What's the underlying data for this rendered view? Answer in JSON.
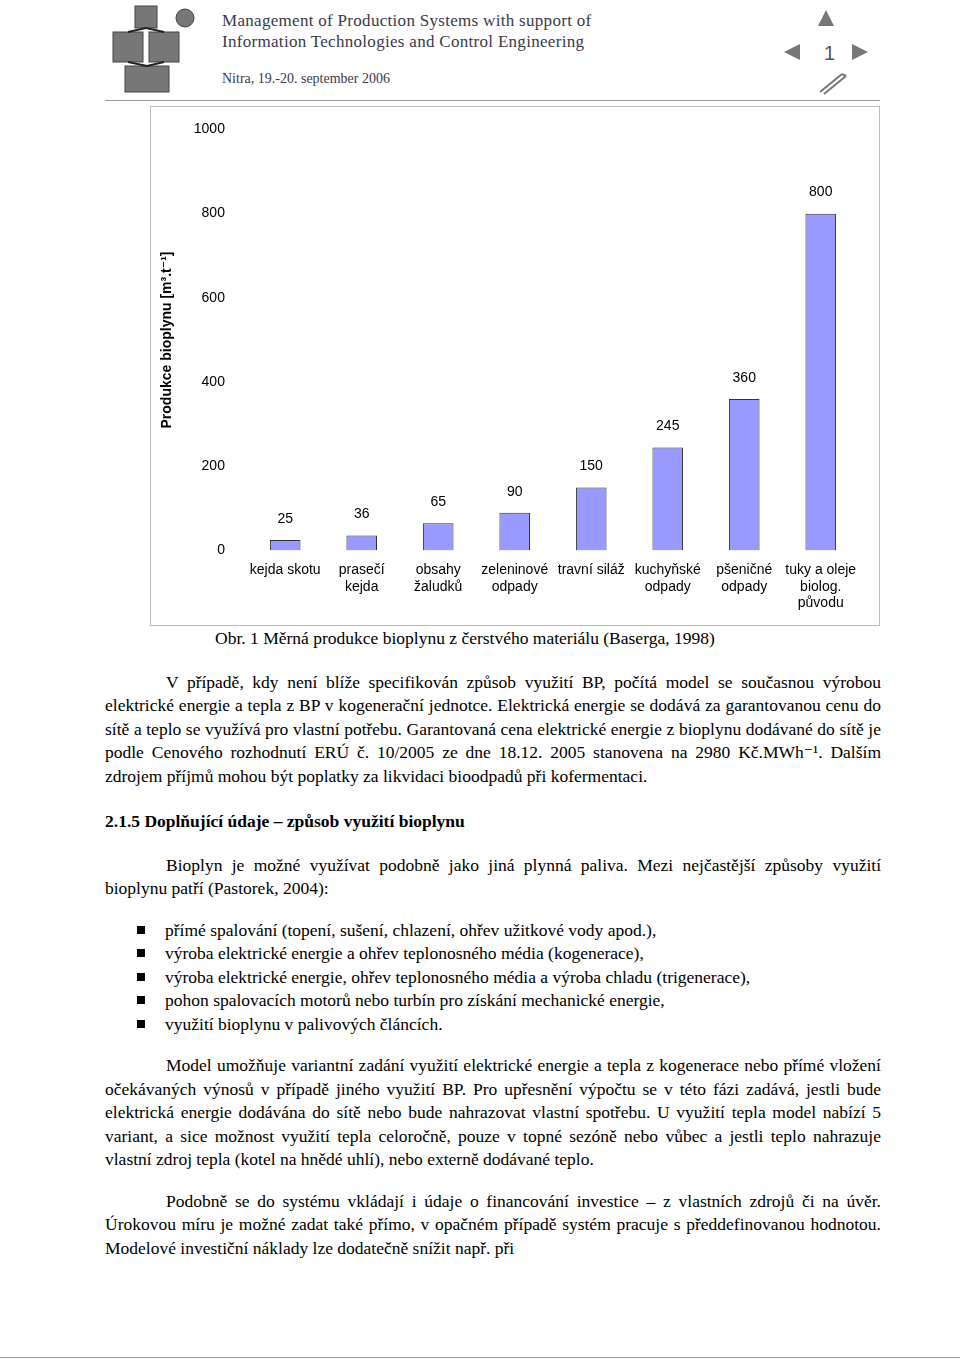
{
  "header": {
    "title_lines": [
      "Management of Production Systems with support of",
      "Information Technologies and Control Engineering"
    ],
    "place_date": "Nitra, 19.-20. september 2006",
    "page": "1"
  },
  "chart_data": {
    "type": "bar",
    "y_label": "Produkce bioplynu [m³.t⁻¹]",
    "categories": [
      "kejda skotu",
      "prasečí\nkejda",
      "obsahy\nžaludků",
      "zeleninové\nodpady",
      "travní siláž",
      "kuchyňské\nodpady",
      "pšeničné\nodpady",
      "tuky a oleje\nbiolog.\npůvodu"
    ],
    "values": [
      25,
      36,
      65,
      90,
      150,
      245,
      360,
      800
    ],
    "color": "#9999ff",
    "ylim": [
      0,
      1000
    ],
    "yticks": [
      0,
      200,
      400,
      600,
      800,
      1000
    ],
    "grid": false,
    "data_labels": true
  },
  "body": [
    {
      "kind": "caption",
      "text": "Obr. 1 Měrná produkce bioplynu z čerstvého materiálu (Baserga, 1998)"
    },
    {
      "kind": "p",
      "text": "V případě, kdy není blíže specifikován způsob využití BP, počítá model se současnou výrobou elektrické energie a tepla z BP v kogenerační jednotce. Elektrická energie se dodává za garantovanou cenu do sítě a teplo se využívá pro vlastní potřebu. Garantovaná cena elektrické energie z bioplynu dodávané do sítě je podle Cenového rozhodnutí ERÚ č. 10/2005 ze dne 18.12. 2005 stanovena na 2980 Kč.MWh⁻¹. Dalším zdrojem příjmů mohou být poplatky za likvidaci bioodpadů při kofermentaci."
    },
    {
      "kind": "h",
      "text": "2.1.5 Doplňující údaje – způsob využití bioplynu"
    },
    {
      "kind": "p",
      "text": "Bioplyn je možné využívat podobně jako jiná plynná paliva. Mezi nejčastější způsoby využití bioplynu patří (Pastorek, 2004):"
    },
    {
      "kind": "ul",
      "items": [
        "přímé spalování (topení, sušení, chlazení, ohřev užitkové vody apod.),",
        "výroba elektrické energie a ohřev teplonosného média (kogenerace),",
        "výroba elektrické energie, ohřev teplonosného média a výroba chladu (trigenerace),",
        "pohon spalovacích motorů nebo turbín pro získání mechanické energie,",
        "využití bioplynu v palivových článcích."
      ]
    },
    {
      "kind": "p",
      "text": "Model umožňuje variantní zadání využití elektrické energie a tepla z kogenerace nebo přímé vložení očekávaných výnosů v případě jiného využití BP. Pro upřesnění výpočtu se v této fázi zadává, jestli bude elektrická energie dodávána do sítě nebo bude nahrazovat vlastní spotřebu. U využití tepla model nabízí 5 variant, a sice možnost využití tepla celoročně, pouze v topné sezóně nebo vůbec a jestli teplo nahrazuje vlastní zdroj tepla (kotel na hnědé uhlí), nebo externě dodávané teplo."
    },
    {
      "kind": "p",
      "text": "Podobně se do systému vkládají i údaje o financování investice – z vlastních zdrojů či na úvěr. Úrokovou míru je možné zadat také přímo, v opačném případě systém pracuje s předdefinovanou hodnotou. Modelové investiční náklady lze dodatečně snížit např. při"
    }
  ]
}
